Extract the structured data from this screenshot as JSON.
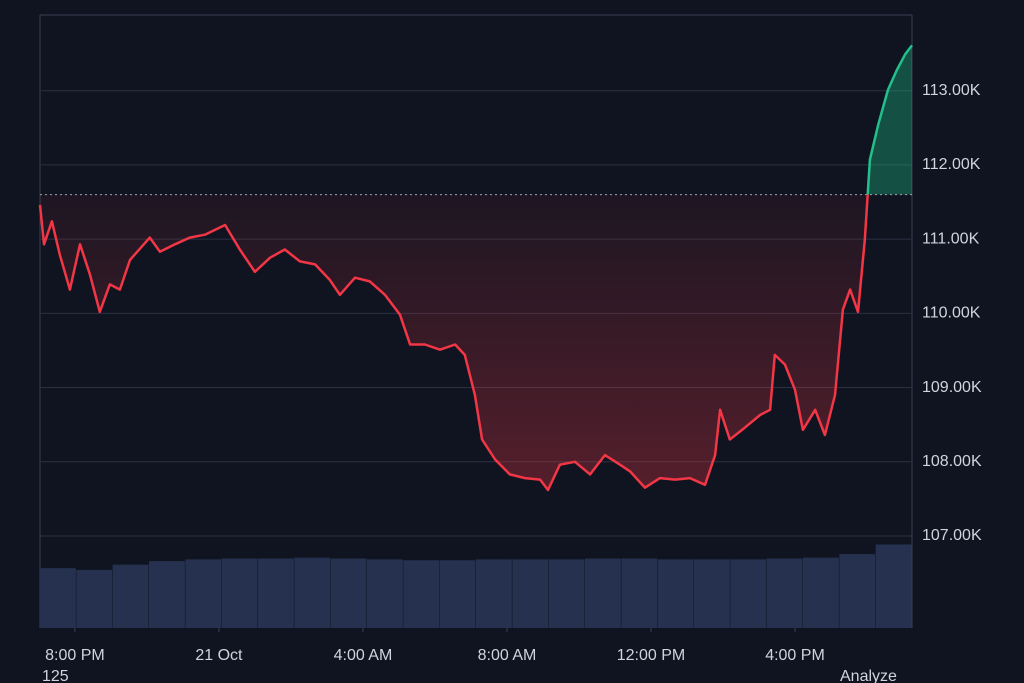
{
  "chart_data": {
    "type": "line",
    "x": [
      -0.97,
      -0.86,
      -0.64,
      -0.42,
      -0.14,
      0.14,
      0.42,
      0.69,
      0.97,
      1.25,
      1.53,
      2.08,
      2.36,
      2.78,
      3.19,
      3.61,
      4.17,
      4.58,
      5,
      5.42,
      5.83,
      6.25,
      6.67,
      7.08,
      7.36,
      7.78,
      8.19,
      8.61,
      9.03,
      9.31,
      9.72,
      10.14,
      10.56,
      10.83,
      11.11,
      11.31,
      11.67,
      12.08,
      12.5,
      12.92,
      13.14,
      13.47,
      13.89,
      14.31,
      14.72,
      15.14,
      15.42,
      15.83,
      16.25,
      16.67,
      17.08,
      17.5,
      17.78,
      17.92,
      18.19,
      18.61,
      19.03,
      19.31,
      19.44,
      19.72,
      20,
      20.22,
      20.56,
      20.83,
      21.11,
      21.33,
      21.53,
      21.75,
      21.94,
      22.08,
      22.31,
      22.58,
      22.83,
      23.06,
      23.25
    ],
    "values": [
      111460,
      110930,
      111240,
      110790,
      110320,
      110930,
      110520,
      110020,
      110390,
      110320,
      110720,
      111020,
      110830,
      110930,
      111020,
      111060,
      111190,
      110860,
      110560,
      110750,
      110860,
      110700,
      110660,
      110450,
      110250,
      110480,
      110430,
      110250,
      109980,
      109580,
      109580,
      109510,
      109580,
      109440,
      108900,
      108300,
      108030,
      107830,
      107780,
      107760,
      107620,
      107960,
      108000,
      107830,
      108090,
      107960,
      107870,
      107650,
      107780,
      107760,
      107780,
      107690,
      108090,
      108700,
      108300,
      108460,
      108630,
      108700,
      109440,
      109310,
      108970,
      108430,
      108700,
      108360,
      108900,
      110050,
      110320,
      110020,
      110990,
      112070,
      112540,
      113010,
      113280,
      113490,
      113610
    ],
    "baseline": 111600,
    "down_color": "#f23645",
    "up_color": "#22c08a",
    "xlim": [
      -0.97,
      23.25
    ],
    "xticks": [
      {
        "value": 0,
        "label": "8:00 PM"
      },
      {
        "value": 4,
        "label": "21 Oct"
      },
      {
        "value": 8,
        "label": "4:00 AM"
      },
      {
        "value": 12,
        "label": "8:00 AM"
      },
      {
        "value": 16,
        "label": "12:00 PM"
      },
      {
        "value": 20,
        "label": "4:00 PM"
      }
    ],
    "ylim": [
      105760,
      114020
    ],
    "yticks": [
      {
        "value": 107000,
        "label": "107.00K"
      },
      {
        "value": 108000,
        "label": "108.00K"
      },
      {
        "value": 109000,
        "label": "109.00K"
      },
      {
        "value": 110000,
        "label": "110.00K"
      },
      {
        "value": 111000,
        "label": "111.00K"
      },
      {
        "value": 112000,
        "label": "112.00K"
      },
      {
        "value": 113000,
        "label": "113.00K"
      }
    ],
    "grid": true,
    "volume": {
      "color": "#26304f",
      "ylim": [
        0,
        100
      ],
      "values": [
        68,
        66,
        72,
        76,
        78,
        79,
        79,
        80,
        79,
        78,
        77,
        77,
        78,
        78,
        78,
        79,
        79,
        78,
        78,
        78,
        79,
        80,
        84,
        95
      ]
    }
  },
  "footer": {
    "left": "125",
    "right": "Analyze"
  }
}
